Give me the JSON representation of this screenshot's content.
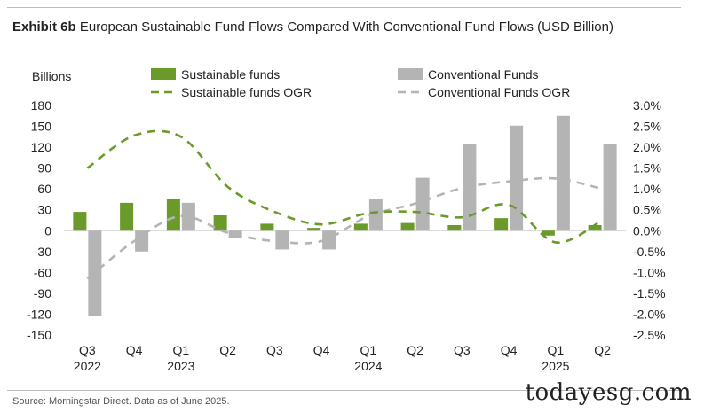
{
  "header": {
    "exhibit": "Exhibit 6b",
    "title": "European Sustainable Fund Flows Compared With Conventional Fund Flows (USD Billion)"
  },
  "footer": {
    "source": "Source: Morningstar Direct. Data as of June 2025.",
    "watermark": "todayesg.com"
  },
  "chart_data": {
    "type": "bar",
    "title": "European Sustainable Fund Flows Compared With Conventional Fund Flows (USD Billion)",
    "ylabel": "Billions",
    "ylabel_right": "",
    "ylim": [
      -150,
      180
    ],
    "y_ticks": [
      180,
      150,
      120,
      90,
      60,
      30,
      0,
      -30,
      -60,
      -90,
      -120,
      -150
    ],
    "y2lim": [
      -2.5,
      3.0
    ],
    "y2_ticks": [
      "3.0%",
      "2.5%",
      "2.0%",
      "1.5%",
      "1.0%",
      "0.5%",
      "0.0%",
      "-0.5%",
      "-1.0%",
      "-1.5%",
      "-2.0%",
      "-2.5%"
    ],
    "categories": [
      "Q3",
      "Q4",
      "Q1",
      "Q2",
      "Q3",
      "Q4",
      "Q1",
      "Q2",
      "Q3",
      "Q4",
      "Q1",
      "Q2"
    ],
    "year_labels": [
      "2022",
      "",
      "2023",
      "",
      "",
      "",
      "2024",
      "",
      "",
      "",
      "2025",
      ""
    ],
    "legend_position": "top",
    "series": [
      {
        "name": "Sustainable funds",
        "kind": "bar",
        "axis": "left",
        "color": "#6a9a2a",
        "values": [
          27,
          40,
          46,
          22,
          10,
          4,
          10,
          11,
          8,
          18,
          -7,
          8
        ]
      },
      {
        "name": "Conventional Funds",
        "kind": "bar",
        "axis": "left",
        "color": "#b4b4b4",
        "values": [
          -123,
          -30,
          40,
          -10,
          -27,
          -27,
          46,
          76,
          125,
          151,
          165,
          125
        ]
      },
      {
        "name": "Sustainable funds OGR",
        "kind": "line",
        "axis": "right",
        "color": "#6a9a2a",
        "dash": "dashed",
        "values": [
          1.5,
          2.28,
          2.25,
          1.05,
          0.45,
          0.15,
          0.42,
          0.45,
          0.32,
          0.62,
          -0.28,
          0.25
        ]
      },
      {
        "name": "Conventional Funds OGR",
        "kind": "line",
        "axis": "right",
        "color": "#b4b4b4",
        "dash": "dashed",
        "values": [
          -1.15,
          -0.25,
          0.35,
          -0.05,
          -0.25,
          -0.25,
          0.35,
          0.65,
          1.02,
          1.18,
          1.25,
          1.0
        ]
      }
    ]
  }
}
